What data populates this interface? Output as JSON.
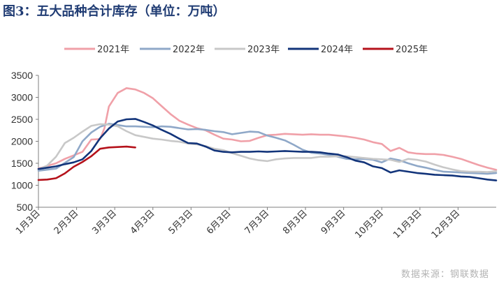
{
  "title": "图3：五大品种合计库存（单位：万吨）",
  "source": "数据来源：钢联数据",
  "chart_data": {
    "type": "line",
    "x_tick_labels": [
      "1月3日",
      "2月3日",
      "3月3日",
      "4月3日",
      "5月3日",
      "6月3日",
      "7月3日",
      "8月3日",
      "9月3日",
      "10月3日",
      "11月3日",
      "12月3日"
    ],
    "x_domain_weeks": [
      0,
      52
    ],
    "ylim": [
      500,
      3500
    ],
    "yticks": [
      500,
      1000,
      1500,
      2000,
      2500,
      3000,
      3500
    ],
    "legend_position": "top",
    "grid": false,
    "series": [
      {
        "name": "2021年",
        "color": "#f0a0a8",
        "x": [
          0,
          1,
          2,
          3,
          4,
          5,
          6,
          7,
          7.5,
          8,
          9,
          10,
          11,
          12,
          13,
          14,
          15,
          16,
          17,
          18,
          19,
          20,
          21,
          22,
          23,
          24,
          25,
          26,
          27,
          28,
          29,
          30,
          31,
          32,
          33,
          34,
          35,
          36,
          37,
          38,
          39,
          40,
          41,
          42,
          43,
          44,
          45,
          46,
          47,
          48,
          49,
          50,
          51,
          52
        ],
        "values": [
          1380,
          1440,
          1500,
          1600,
          1680,
          1760,
          2040,
          2050,
          2300,
          2790,
          3100,
          3210,
          3180,
          3100,
          2980,
          2800,
          2620,
          2470,
          2380,
          2300,
          2250,
          2150,
          2060,
          2040,
          2000,
          2010,
          2080,
          2140,
          2150,
          2170,
          2160,
          2150,
          2160,
          2150,
          2150,
          2130,
          2110,
          2080,
          2040,
          1980,
          1940,
          1780,
          1850,
          1750,
          1720,
          1710,
          1710,
          1690,
          1650,
          1600,
          1530,
          1460,
          1400,
          1350
        ]
      },
      {
        "name": "2022年",
        "color": "#8fa8c8",
        "x": [
          0,
          2,
          4,
          5,
          6,
          7,
          8,
          9,
          10,
          11,
          12,
          13,
          14,
          15,
          16,
          17,
          18,
          19,
          20,
          21,
          22,
          23,
          24,
          25,
          26,
          27,
          28,
          29,
          30,
          31,
          32,
          33,
          34,
          35,
          36,
          37,
          38,
          39,
          40,
          41,
          42,
          43,
          44,
          45,
          46,
          47,
          48,
          49,
          50,
          51,
          52
        ],
        "values": [
          1330,
          1380,
          1640,
          2000,
          2200,
          2330,
          2400,
          2370,
          2340,
          2340,
          2330,
          2320,
          2340,
          2330,
          2300,
          2270,
          2280,
          2260,
          2230,
          2210,
          2160,
          2190,
          2220,
          2210,
          2130,
          2080,
          2020,
          1920,
          1810,
          1740,
          1720,
          1690,
          1650,
          1600,
          1590,
          1600,
          1580,
          1520,
          1610,
          1570,
          1500,
          1440,
          1400,
          1350,
          1310,
          1300,
          1290,
          1280,
          1270,
          1260,
          1280
        ]
      },
      {
        "name": "2023年",
        "color": "#c8c8c8",
        "x": [
          0,
          1,
          2,
          3,
          4,
          5,
          6,
          7,
          8,
          9,
          10,
          11,
          12,
          13,
          14,
          15,
          16,
          17,
          18,
          19,
          20,
          21,
          22,
          23,
          24,
          25,
          26,
          27,
          28,
          29,
          30,
          31,
          32,
          33,
          34,
          35,
          36,
          37,
          38,
          39,
          40,
          41,
          42,
          43,
          44,
          45,
          46,
          47,
          48,
          49,
          50,
          51,
          52
        ],
        "values": [
          1360,
          1450,
          1650,
          1960,
          2080,
          2220,
          2350,
          2390,
          2380,
          2340,
          2230,
          2140,
          2100,
          2060,
          2040,
          2010,
          1990,
          1950,
          1930,
          1890,
          1830,
          1800,
          1730,
          1670,
          1610,
          1570,
          1550,
          1590,
          1610,
          1620,
          1620,
          1620,
          1650,
          1650,
          1660,
          1660,
          1640,
          1620,
          1600,
          1590,
          1580,
          1530,
          1600,
          1580,
          1540,
          1470,
          1410,
          1360,
          1320,
          1310,
          1310,
          1300,
          1320
        ]
      },
      {
        "name": "2024年",
        "color": "#12347a",
        "x": [
          0,
          1,
          2,
          3,
          4,
          5,
          6,
          7,
          8,
          9,
          10,
          11,
          12,
          13,
          14,
          15,
          16,
          17,
          18,
          19,
          20,
          21,
          22,
          23,
          24,
          25,
          26,
          27,
          28,
          29,
          30,
          31,
          32,
          33,
          34,
          35,
          36,
          37,
          38,
          39,
          40,
          41,
          42,
          43,
          44,
          45,
          46,
          47,
          48,
          49,
          50,
          51,
          52
        ],
        "values": [
          1370,
          1400,
          1430,
          1480,
          1520,
          1590,
          1780,
          2070,
          2290,
          2450,
          2500,
          2510,
          2440,
          2360,
          2260,
          2170,
          2060,
          1960,
          1950,
          1880,
          1790,
          1760,
          1750,
          1760,
          1760,
          1770,
          1760,
          1770,
          1780,
          1770,
          1760,
          1760,
          1750,
          1720,
          1700,
          1640,
          1560,
          1520,
          1430,
          1390,
          1290,
          1340,
          1310,
          1280,
          1260,
          1240,
          1230,
          1220,
          1200,
          1190,
          1160,
          1130,
          1110
        ]
      },
      {
        "name": "2025年",
        "color": "#b5121b",
        "x": [
          0,
          1,
          2,
          3,
          4,
          5,
          6,
          7,
          8,
          9,
          10,
          11
        ],
        "values": [
          1120,
          1130,
          1160,
          1270,
          1420,
          1530,
          1660,
          1830,
          1860,
          1870,
          1880,
          1860
        ]
      }
    ]
  }
}
